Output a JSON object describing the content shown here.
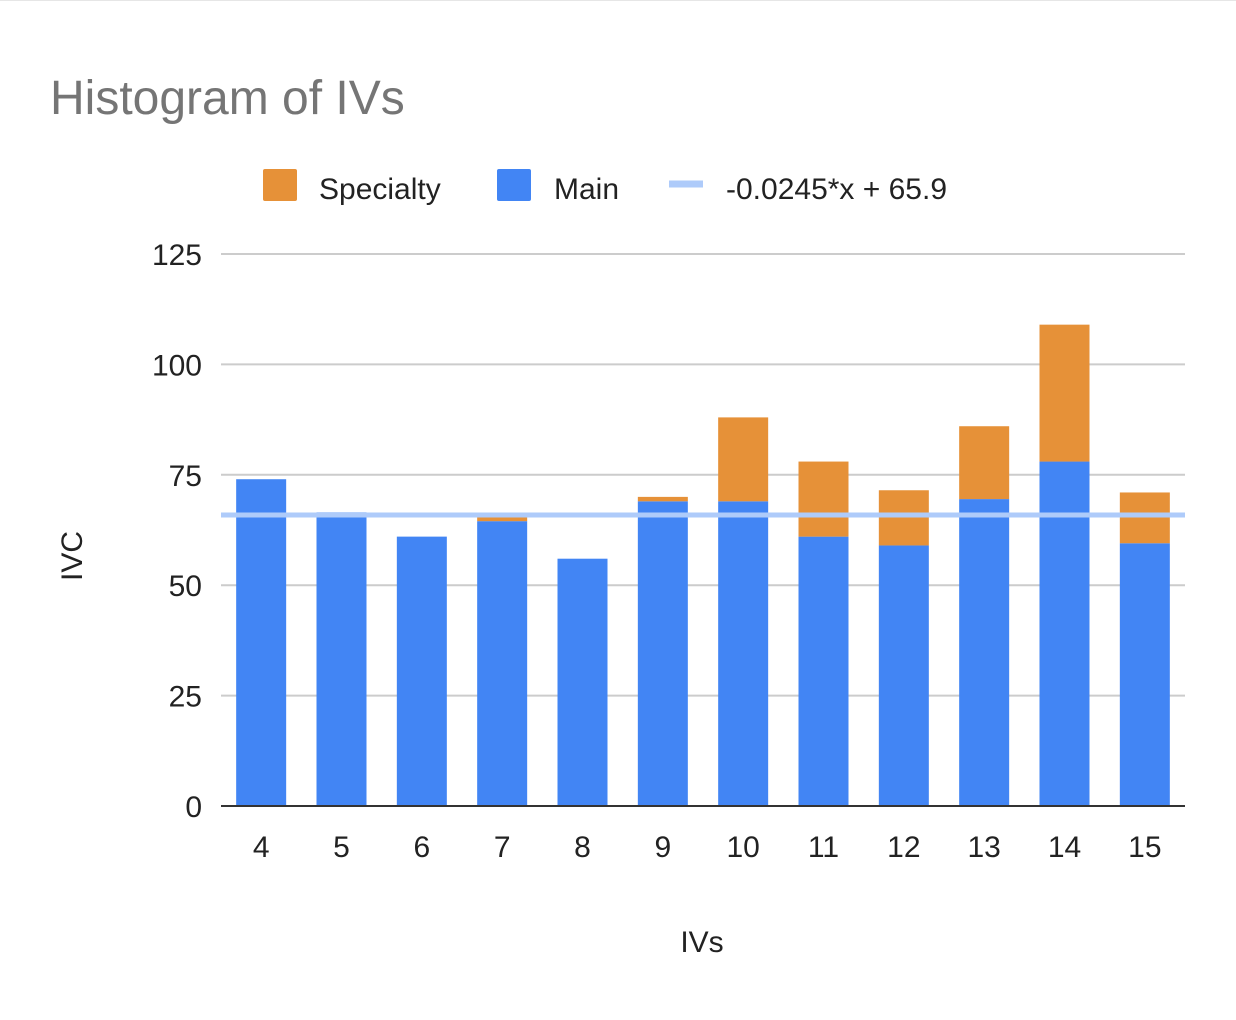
{
  "chart_data": {
    "type": "bar",
    "stacked": true,
    "title": "Histogram of IVs",
    "xlabel": "IVs",
    "ylabel": "IVC",
    "categories": [
      "4",
      "5",
      "6",
      "7",
      "8",
      "9",
      "10",
      "11",
      "12",
      "13",
      "14",
      "15"
    ],
    "series": [
      {
        "name": "Main",
        "color": "#4285f4",
        "values": [
          74,
          66.5,
          61,
          64.5,
          56,
          69,
          69,
          61,
          59,
          69.5,
          78,
          59.5
        ]
      },
      {
        "name": "Specialty",
        "color": "#e69138",
        "values": [
          0,
          0,
          0,
          1.5,
          0,
          1,
          19,
          17,
          12.5,
          16.5,
          31,
          11.5
        ]
      }
    ],
    "trendline": {
      "label": "-0.0245*x + 65.9",
      "color": "#aecbfa",
      "value": 65.9
    },
    "legend": {
      "position": "top",
      "entries": [
        "Specialty",
        "Main",
        "-0.0245*x + 65.9"
      ]
    },
    "ylim": [
      0,
      125
    ],
    "yticks": [
      0,
      25,
      50,
      75,
      100,
      125
    ],
    "grid": true
  }
}
